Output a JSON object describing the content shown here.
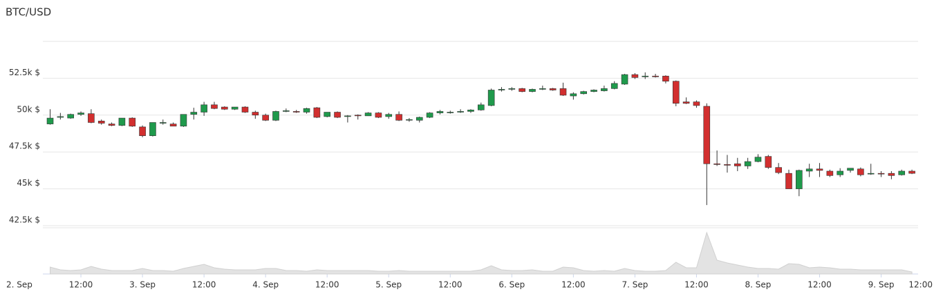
{
  "chart_data": {
    "type": "candlestick",
    "title": "BTC/USD",
    "x": [
      6,
      8,
      10,
      12,
      14,
      16,
      18,
      20,
      22,
      24,
      26,
      28,
      30,
      32,
      34,
      36,
      38,
      40,
      42,
      44,
      46,
      48,
      50,
      52,
      54,
      56,
      58,
      60,
      62,
      64,
      66,
      68,
      70,
      72,
      74,
      76,
      78,
      80,
      82,
      84,
      86,
      88,
      90,
      92,
      94,
      96,
      98,
      100,
      102,
      104,
      106,
      108,
      110,
      112,
      114,
      116,
      118,
      120,
      122,
      124,
      126,
      128,
      130,
      132,
      134,
      136,
      138,
      140,
      142,
      144,
      146,
      148,
      150,
      152,
      154,
      156,
      158,
      160,
      162,
      164,
      166,
      168,
      170,
      172,
      174
    ],
    "open": [
      49400,
      49850,
      49800,
      50050,
      50100,
      49600,
      49400,
      49300,
      49800,
      49200,
      48600,
      49450,
      49400,
      49250,
      50050,
      50200,
      50700,
      50550,
      50400,
      50550,
      50200,
      50000,
      49650,
      50250,
      50250,
      50200,
      50500,
      49900,
      50200,
      49900,
      50000,
      49950,
      50150,
      49900,
      50050,
      49700,
      49650,
      49850,
      50150,
      50200,
      50200,
      50250,
      50350,
      50650,
      51700,
      51750,
      51800,
      51600,
      51750,
      51800,
      51800,
      51300,
      51450,
      51600,
      51650,
      51800,
      52100,
      52750,
      52600,
      52650,
      52650,
      52300,
      50900,
      50900,
      50600,
      46700,
      46650,
      46700,
      46550,
      46850,
      47200,
      46450,
      46050,
      45000,
      46200,
      46350,
      46200,
      45950,
      46250,
      46350,
      46000,
      46050,
      46050,
      45950,
      46200
    ],
    "high": [
      50400,
      50150,
      50100,
      50250,
      50400,
      49700,
      49500,
      49800,
      49850,
      49300,
      49500,
      49700,
      49500,
      50050,
      50500,
      50900,
      50900,
      50600,
      50550,
      50600,
      50300,
      50100,
      50300,
      50450,
      50350,
      50500,
      50550,
      50200,
      50250,
      50000,
      50050,
      50200,
      50200,
      50150,
      50250,
      49800,
      49900,
      50200,
      50350,
      50300,
      50400,
      50400,
      50850,
      51800,
      51900,
      51900,
      51850,
      51800,
      52000,
      51850,
      52200,
      51550,
      51650,
      51750,
      52000,
      52300,
      52800,
      52850,
      52900,
      52800,
      52700,
      52350,
      51200,
      51000,
      50800,
      47600,
      47300,
      47100,
      47100,
      47350,
      47300,
      46750,
      46300,
      46300,
      46700,
      46750,
      46300,
      46400,
      46400,
      46450,
      46700,
      46200,
      46200,
      46300,
      46300
    ],
    "low": [
      49350,
      49700,
      49750,
      49950,
      49450,
      49350,
      49250,
      49250,
      49200,
      48500,
      48550,
      49350,
      49250,
      49200,
      49700,
      49950,
      50400,
      50350,
      50350,
      50150,
      49750,
      49600,
      49600,
      50200,
      50150,
      50100,
      49800,
      49850,
      49800,
      49500,
      49700,
      49950,
      49800,
      49750,
      49600,
      49550,
      49500,
      49800,
      50050,
      50100,
      50150,
      50150,
      50300,
      50600,
      51600,
      51650,
      51550,
      51550,
      51700,
      51650,
      51300,
      51050,
      51400,
      51550,
      51600,
      51750,
      52050,
      52450,
      52450,
      52550,
      52150,
      50600,
      50750,
      50500,
      43900,
      46550,
      46100,
      46200,
      46350,
      46800,
      46350,
      46000,
      45000,
      44500,
      45800,
      45800,
      45800,
      45800,
      46100,
      45850,
      45950,
      45800,
      45650,
      45900,
      46000
    ],
    "close": [
      49800,
      49900,
      50050,
      50150,
      49500,
      49450,
      49300,
      49800,
      49250,
      48600,
      49500,
      49500,
      49250,
      50050,
      50200,
      50700,
      50450,
      50400,
      50550,
      50200,
      50000,
      49650,
      50250,
      50300,
      50200,
      50450,
      49850,
      50200,
      49850,
      49950,
      49950,
      50150,
      49850,
      50050,
      49650,
      49700,
      49850,
      50150,
      50250,
      50200,
      50250,
      50350,
      50700,
      51700,
      51750,
      51800,
      51600,
      51750,
      51800,
      51700,
      51350,
      51450,
      51600,
      51700,
      51800,
      52150,
      52750,
      52550,
      52650,
      52600,
      52300,
      50800,
      50800,
      50650,
      46700,
      46650,
      46600,
      46550,
      46850,
      47150,
      46450,
      46100,
      45000,
      46250,
      46350,
      46250,
      45900,
      46200,
      46400,
      45950,
      46050,
      46000,
      45900,
      46200,
      46050
    ],
    "volume": [
      10,
      6,
      5,
      6,
      11,
      7,
      5,
      5,
      5,
      8,
      5,
      5,
      4,
      8,
      11,
      14,
      9,
      7,
      6,
      6,
      6,
      8,
      8,
      5,
      5,
      4,
      6,
      5,
      5,
      5,
      5,
      5,
      4,
      4,
      5,
      4,
      4,
      4,
      4,
      4,
      4,
      4,
      6,
      12,
      6,
      5,
      5,
      6,
      4,
      4,
      10,
      9,
      5,
      4,
      5,
      4,
      8,
      5,
      4,
      4,
      5,
      17,
      9,
      9,
      60,
      20,
      16,
      13,
      10,
      8,
      8,
      7,
      15,
      14,
      9,
      10,
      9,
      7,
      7,
      6,
      6,
      6,
      6,
      6,
      3
    ],
    "up_color": "#1f9a4c",
    "down_color": "#d22f2f",
    "volume_color": "#e3e3e3",
    "xlim": [
      0,
      180
    ],
    "xticks": [
      {
        "value": 0,
        "label": "2. Sep"
      },
      {
        "value": 12,
        "label": "12:00"
      },
      {
        "value": 24,
        "label": "3. Sep"
      },
      {
        "value": 36,
        "label": "12:00"
      },
      {
        "value": 48,
        "label": "4. Sep"
      },
      {
        "value": 60,
        "label": "12:00"
      },
      {
        "value": 72,
        "label": "5. Sep"
      },
      {
        "value": 84,
        "label": "12:00"
      },
      {
        "value": 96,
        "label": "6. Sep"
      },
      {
        "value": 108,
        "label": "12:00"
      },
      {
        "value": 120,
        "label": "7. Sep"
      },
      {
        "value": 132,
        "label": "12:00"
      },
      {
        "value": 144,
        "label": "8. Sep"
      },
      {
        "value": 156,
        "label": "12:00"
      },
      {
        "value": 168,
        "label": "9. Sep"
      },
      {
        "value": 180,
        "label": "12:00"
      }
    ],
    "ylim": [
      42500,
      55000
    ],
    "yticks": [
      {
        "value": 42500,
        "label": "42.5k $"
      },
      {
        "value": 45000,
        "label": "45k $"
      },
      {
        "value": 47500,
        "label": "47.5k $"
      },
      {
        "value": 50000,
        "label": "50k $"
      },
      {
        "value": 52500,
        "label": "52.5k $"
      }
    ],
    "grid": true
  }
}
